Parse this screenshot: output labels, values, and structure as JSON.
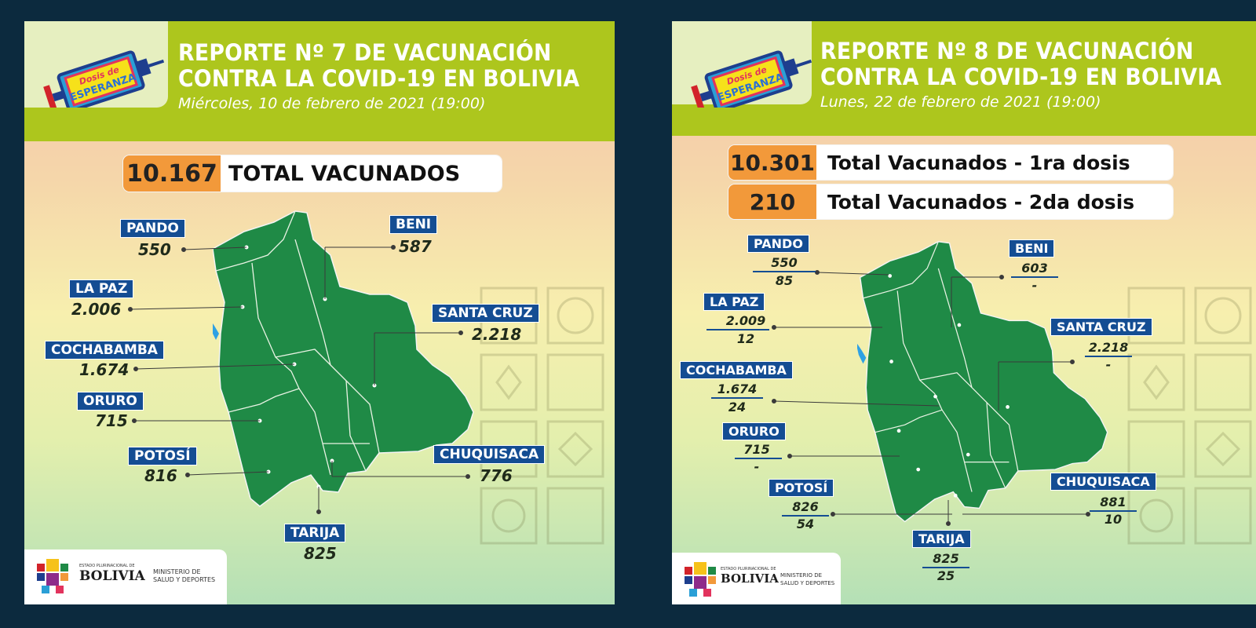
{
  "colors": {
    "background": "#0c2a3e",
    "header": "#adc61d",
    "label": "#144d93",
    "map": "#1f8a46",
    "orange": "#f2993a"
  },
  "logo_text": {
    "line1": "Dosis de",
    "line2": "ESPERANZA"
  },
  "footer": {
    "state": "ESTADO PLURINACIONAL DE",
    "country": "BOLIVIA",
    "ministry_line1": "MINISTERIO DE",
    "ministry_line2": "SALUD Y DEPORTES"
  },
  "report1": {
    "title_line1": "REPORTE Nº 7 DE VACUNACIÓN",
    "title_line2": "CONTRA LA COVID-19 EN BOLIVIA",
    "date": "Miércoles, 10 de febrero de 2021 (19:00)",
    "total_value": "10.167",
    "total_label": "TOTAL VACUNADOS",
    "departments": {
      "pando": {
        "name": "PANDO",
        "value": "550"
      },
      "beni": {
        "name": "BENI",
        "value": "587"
      },
      "la_paz": {
        "name": "LA PAZ",
        "value": "2.006"
      },
      "santa_cruz": {
        "name": "SANTA CRUZ",
        "value": "2.218"
      },
      "cochabamba": {
        "name": "COCHABAMBA",
        "value": "1.674"
      },
      "oruro": {
        "name": "ORURO",
        "value": "715"
      },
      "potosi": {
        "name": "POTOSÍ",
        "value": "816"
      },
      "chuquisaca": {
        "name": "CHUQUISACA",
        "value": "776"
      },
      "tarija": {
        "name": "TARIJA",
        "value": "825"
      }
    }
  },
  "report2": {
    "title_line1": "REPORTE Nº 8 DE VACUNACIÓN",
    "title_line2": "CONTRA LA COVID-19 EN BOLIVIA",
    "date": "Lunes, 22 de febrero de 2021 (19:00)",
    "total_dose1_value": "10.301",
    "total_dose1_label": "Total Vacunados - 1ra dosis",
    "total_dose2_value": "210",
    "total_dose2_label": "Total Vacunados - 2da dosis",
    "departments": {
      "pando": {
        "name": "PANDO",
        "dose1": "550",
        "dose2": "85"
      },
      "beni": {
        "name": "BENI",
        "dose1": "603",
        "dose2": "-"
      },
      "la_paz": {
        "name": "LA PAZ",
        "dose1": "2.009",
        "dose2": "12"
      },
      "santa_cruz": {
        "name": "SANTA CRUZ",
        "dose1": "2.218",
        "dose2": "-"
      },
      "cochabamba": {
        "name": "COCHABAMBA",
        "dose1": "1.674",
        "dose2": "24"
      },
      "oruro": {
        "name": "ORURO",
        "dose1": "715",
        "dose2": "-"
      },
      "potosi": {
        "name": "POTOSÍ",
        "dose1": "826",
        "dose2": "54"
      },
      "chuquisaca": {
        "name": "CHUQUISACA",
        "dose1": "881",
        "dose2": "10"
      },
      "tarija": {
        "name": "TARIJA",
        "dose1": "825",
        "dose2": "25"
      }
    }
  }
}
